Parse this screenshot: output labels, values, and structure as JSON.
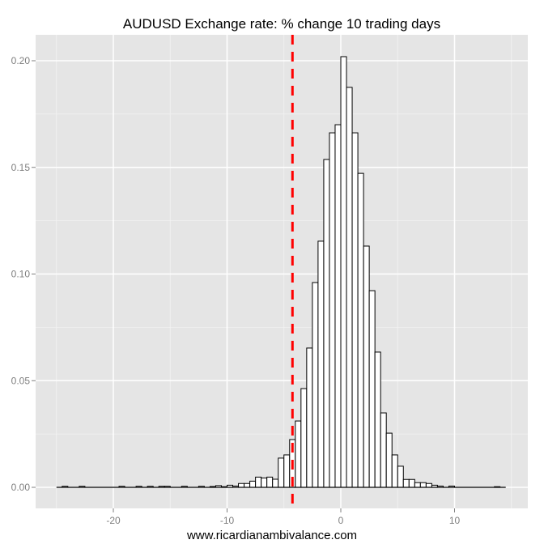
{
  "chart_data": {
    "type": "bar",
    "subtype": "histogram",
    "title": "AUDUSD Exchange rate: % change 10 trading days",
    "xlabel": "www.ricardianambivalance.com",
    "ylabel": "",
    "xlim": [
      -26.6,
      16.6
    ],
    "ylim": [
      -0.0098,
      0.2099
    ],
    "x_ticks": [
      -20,
      -10,
      0,
      10
    ],
    "x_tick_labels": [
      "-20",
      "-10",
      "0",
      "10"
    ],
    "y_ticks": [
      0.0,
      0.05,
      0.1,
      0.15,
      0.2
    ],
    "y_tick_labels": [
      "0.00",
      "0.05",
      "0.10",
      "0.15",
      "0.20"
    ],
    "grid": true,
    "legend": null,
    "bin_width": 0.5,
    "bin_start": -25,
    "bins": [
      {
        "x": -25.0,
        "y": 0.0
      },
      {
        "x": -24.5,
        "y": 0.0005
      },
      {
        "x": -24.0,
        "y": 0.0
      },
      {
        "x": -23.5,
        "y": 0.0
      },
      {
        "x": -23.0,
        "y": 0.0005
      },
      {
        "x": -22.5,
        "y": 0.0
      },
      {
        "x": -22.0,
        "y": 0.0
      },
      {
        "x": -21.5,
        "y": 0.0
      },
      {
        "x": -21.0,
        "y": 0.0
      },
      {
        "x": -20.5,
        "y": 0.0
      },
      {
        "x": -20.0,
        "y": 0.0
      },
      {
        "x": -19.5,
        "y": 0.0005
      },
      {
        "x": -19.0,
        "y": 0.0
      },
      {
        "x": -18.5,
        "y": 0.0
      },
      {
        "x": -18.0,
        "y": 0.0005
      },
      {
        "x": -17.5,
        "y": 0.0
      },
      {
        "x": -17.0,
        "y": 0.0005
      },
      {
        "x": -16.5,
        "y": 0.0
      },
      {
        "x": -16.0,
        "y": 0.0005
      },
      {
        "x": -15.5,
        "y": 0.0005
      },
      {
        "x": -15.0,
        "y": 0.0
      },
      {
        "x": -14.5,
        "y": 0.0
      },
      {
        "x": -14.0,
        "y": 0.0005
      },
      {
        "x": -13.5,
        "y": 0.0
      },
      {
        "x": -13.0,
        "y": 0.0
      },
      {
        "x": -12.5,
        "y": 0.0005
      },
      {
        "x": -12.0,
        "y": 0.0
      },
      {
        "x": -11.5,
        "y": 0.0004
      },
      {
        "x": -11.0,
        "y": 0.0008
      },
      {
        "x": -10.5,
        "y": 0.0003
      },
      {
        "x": -10.0,
        "y": 0.001
      },
      {
        "x": -9.5,
        "y": 0.0006
      },
      {
        "x": -9.0,
        "y": 0.0018
      },
      {
        "x": -8.5,
        "y": 0.0018
      },
      {
        "x": -8.0,
        "y": 0.0029
      },
      {
        "x": -7.5,
        "y": 0.0048
      },
      {
        "x": -7.0,
        "y": 0.0044
      },
      {
        "x": -6.5,
        "y": 0.0048
      },
      {
        "x": -6.0,
        "y": 0.0038
      },
      {
        "x": -5.5,
        "y": 0.0137
      },
      {
        "x": -5.0,
        "y": 0.0152
      },
      {
        "x": -4.5,
        "y": 0.0224
      },
      {
        "x": -4.0,
        "y": 0.0311
      },
      {
        "x": -3.5,
        "y": 0.0463
      },
      {
        "x": -3.0,
        "y": 0.0653
      },
      {
        "x": -2.5,
        "y": 0.096
      },
      {
        "x": -2.0,
        "y": 0.1154
      },
      {
        "x": -1.5,
        "y": 0.1537
      },
      {
        "x": -1.0,
        "y": 0.1662
      },
      {
        "x": -0.5,
        "y": 0.17
      },
      {
        "x": 0.0,
        "y": 0.2019
      },
      {
        "x": 0.5,
        "y": 0.1875
      },
      {
        "x": 1.0,
        "y": 0.1662
      },
      {
        "x": 1.5,
        "y": 0.1472
      },
      {
        "x": 2.0,
        "y": 0.1131
      },
      {
        "x": 2.5,
        "y": 0.0922
      },
      {
        "x": 3.0,
        "y": 0.0634
      },
      {
        "x": 3.5,
        "y": 0.0349
      },
      {
        "x": 4.0,
        "y": 0.0254
      },
      {
        "x": 4.5,
        "y": 0.0152
      },
      {
        "x": 5.0,
        "y": 0.0099
      },
      {
        "x": 5.5,
        "y": 0.0037
      },
      {
        "x": 6.0,
        "y": 0.0037
      },
      {
        "x": 6.5,
        "y": 0.0022
      },
      {
        "x": 7.0,
        "y": 0.0022
      },
      {
        "x": 7.5,
        "y": 0.0018
      },
      {
        "x": 8.0,
        "y": 0.001
      },
      {
        "x": 8.5,
        "y": 0.0006
      },
      {
        "x": 9.0,
        "y": 0.0
      },
      {
        "x": 9.5,
        "y": 0.0006
      },
      {
        "x": 10.0,
        "y": 0.0
      },
      {
        "x": 10.5,
        "y": 0.0
      },
      {
        "x": 11.0,
        "y": 0.0
      },
      {
        "x": 11.5,
        "y": 0.0
      },
      {
        "x": 12.0,
        "y": 0.0
      },
      {
        "x": 12.5,
        "y": 0.0
      },
      {
        "x": 13.0,
        "y": 0.0
      },
      {
        "x": 13.5,
        "y": 0.0003
      },
      {
        "x": 14.0,
        "y": 0.0
      }
    ],
    "annotations": [
      {
        "type": "vline",
        "x": -4.25,
        "style": "dashed",
        "color": "#ff0000"
      }
    ]
  },
  "colors": {
    "panel_bg": "#e5e5e5",
    "grid_major": "#ffffff",
    "grid_minor": "#f2f2f2",
    "bar_fill": "#ffffff",
    "bar_stroke": "#000000",
    "tick_label": "#7f7f7f",
    "vline": "#ff0000"
  }
}
